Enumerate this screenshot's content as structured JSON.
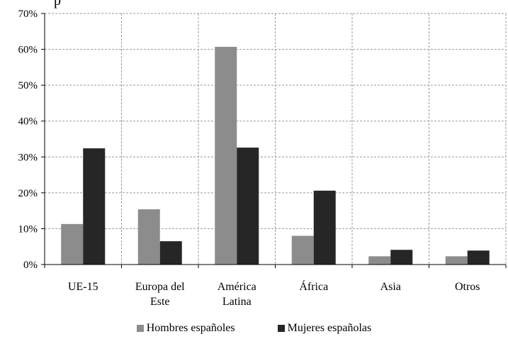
{
  "chart_data": {
    "type": "bar",
    "title_fragment": "p",
    "categories": [
      [
        "UE-15"
      ],
      [
        "Europa del",
        "Este"
      ],
      [
        "América",
        "Latina"
      ],
      [
        "África"
      ],
      [
        "Asia"
      ],
      [
        "Otros"
      ]
    ],
    "series": [
      {
        "name": "Hombres españoles",
        "color": "#8c8c8c",
        "values": [
          11.3,
          15.4,
          60.7,
          8.0,
          2.3,
          2.3
        ]
      },
      {
        "name": "Mujeres españolas",
        "color": "#262626",
        "values": [
          32.4,
          6.5,
          32.6,
          20.6,
          4.1,
          3.9
        ]
      }
    ],
    "ylim": [
      0,
      70
    ],
    "yticks": [
      "0%",
      "10%",
      "20%",
      "30%",
      "40%",
      "50%",
      "60%",
      "70%"
    ],
    "grid": "dashed",
    "legend_position": "bottom"
  }
}
